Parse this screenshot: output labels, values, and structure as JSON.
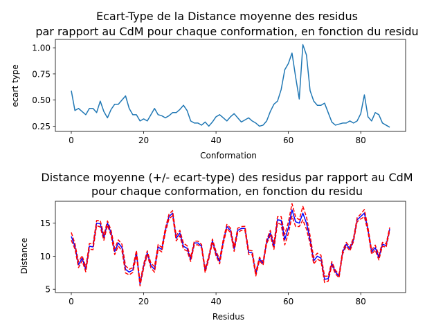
{
  "colors": {
    "line1": "#1f77b4",
    "mean_line": "#0000ff",
    "band_line": "#ff0000",
    "axis": "#000000",
    "background": "#ffffff"
  },
  "chart_data": [
    {
      "type": "line",
      "title_line1": "Ecart-Type de la Distance moyenne des residus",
      "title_line2": "par rapport au CdM pour chaque conformation, en fonction du residu",
      "xlabel": "Conformation",
      "ylabel": "ecart type",
      "xlim": [
        -4.4,
        92.4
      ],
      "ylim": [
        0.2,
        1.08
      ],
      "xticks": [
        0,
        20,
        40,
        60,
        80
      ],
      "yticks": [
        0.25,
        0.5,
        0.75,
        1.0
      ],
      "ytick_labels": [
        "0.25",
        "0.50",
        "0.75",
        "1.00"
      ],
      "grid": false,
      "series": [
        {
          "values": [
            0.59,
            0.4,
            0.42,
            0.39,
            0.36,
            0.42,
            0.42,
            0.38,
            0.49,
            0.39,
            0.33,
            0.41,
            0.46,
            0.46,
            0.5,
            0.54,
            0.42,
            0.36,
            0.36,
            0.3,
            0.32,
            0.3,
            0.36,
            0.42,
            0.36,
            0.35,
            0.33,
            0.35,
            0.38,
            0.38,
            0.41,
            0.45,
            0.4,
            0.3,
            0.28,
            0.28,
            0.26,
            0.29,
            0.25,
            0.29,
            0.34,
            0.36,
            0.33,
            0.3,
            0.34,
            0.37,
            0.33,
            0.29,
            0.31,
            0.33,
            0.3,
            0.28,
            0.25,
            0.26,
            0.3,
            0.39,
            0.46,
            0.49,
            0.6,
            0.79,
            0.85,
            0.95,
            0.72,
            0.51,
            1.03,
            0.93,
            0.59,
            0.49,
            0.45,
            0.45,
            0.47,
            0.38,
            0.29,
            0.26,
            0.27,
            0.28,
            0.28,
            0.3,
            0.28,
            0.3,
            0.37,
            0.55,
            0.34,
            0.3,
            0.38,
            0.36,
            0.28,
            0.26,
            0.24
          ]
        }
      ]
    },
    {
      "type": "line",
      "title_line1": "Distance moyenne (+/- ecart-type) des residus par rapport au CdM",
      "title_line2": "pour chaque conformation, en fonction du residu",
      "xlabel": "Residus",
      "ylabel": "Distance",
      "xlim": [
        -4.4,
        92.4
      ],
      "ylim": [
        4.5,
        18.3
      ],
      "xticks": [
        0,
        20,
        40,
        60,
        80
      ],
      "yticks": [
        5,
        10,
        15
      ],
      "ytick_labels": [
        "5",
        "10",
        "15"
      ],
      "grid": false,
      "series": [
        {
          "style": "mean",
          "values": [
            13.0,
            11.5,
            8.7,
            9.7,
            8.0,
            11.5,
            11.4,
            15.0,
            14.9,
            12.8,
            15.0,
            13.5,
            10.7,
            12.0,
            11.3,
            8.0,
            7.6,
            7.9,
            10.5,
            5.8,
            8.5,
            10.5,
            8.6,
            8.0,
            11.4,
            11.0,
            13.9,
            16.0,
            16.5,
            12.7,
            13.5,
            11.5,
            11.2,
            9.5,
            12.0,
            12.0,
            11.5,
            7.8,
            9.8,
            12.3,
            10.4,
            9.2,
            12.2,
            14.5,
            13.9,
            11.1,
            13.9,
            14.2,
            14.2,
            10.6,
            10.5,
            7.3,
            9.6,
            8.9,
            12.2,
            13.5,
            11.5,
            15.5,
            15.4,
            12.5,
            14.3,
            17.0,
            15.2,
            15.0,
            16.5,
            15.0,
            12.5,
            9.3,
            10.0,
            9.7,
            6.5,
            6.6,
            8.9,
            7.6,
            7.0,
            10.6,
            11.8,
            11.1,
            12.5,
            15.5,
            16.0,
            16.5,
            14.0,
            10.6,
            11.3,
            9.8,
            11.8,
            11.6,
            14.1
          ]
        }
      ]
    }
  ]
}
